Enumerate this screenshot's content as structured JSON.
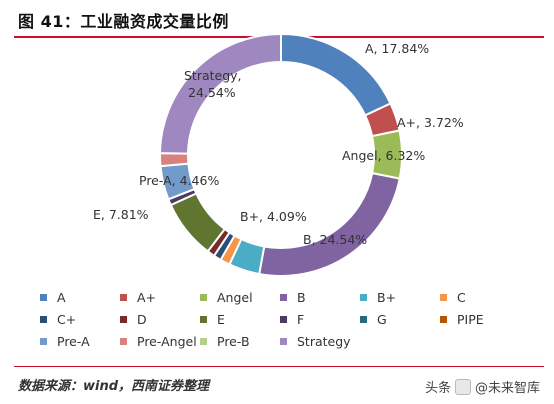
{
  "figure": {
    "title": "图 41：工业融资成交量比例",
    "source": "数据来源：wind，西南证券整理",
    "watermark_left": "头条",
    "watermark_right": "@未来智库"
  },
  "chart_data": {
    "type": "pie",
    "title": "图 41：工业融资成交量比例",
    "donut": true,
    "legend_position": "bottom",
    "slices": [
      {
        "name": "A",
        "value": 17.84,
        "label": "A, 17.84%",
        "color": "#4f81bd"
      },
      {
        "name": "A+",
        "value": 3.72,
        "label": "A+, 3.72%",
        "color": "#c0504d"
      },
      {
        "name": "Angel",
        "value": 6.32,
        "label": "Angel, 6.32%",
        "color": "#9bbb59"
      },
      {
        "name": "B",
        "value": 24.54,
        "label": "B, 24.54%",
        "color": "#8064a2"
      },
      {
        "name": "B+",
        "value": 4.09,
        "label": "B+, 4.09%",
        "color": "#4bacc6"
      },
      {
        "name": "C",
        "value": 1.3,
        "label": "",
        "color": "#f79646"
      },
      {
        "name": "C+",
        "value": 1.0,
        "label": "",
        "color": "#2c4d75"
      },
      {
        "name": "D",
        "value": 1.0,
        "label": "",
        "color": "#772c2a"
      },
      {
        "name": "E",
        "value": 7.81,
        "label": "E, 7.81%",
        "color": "#5f7530"
      },
      {
        "name": "F",
        "value": 0.8,
        "label": "",
        "color": "#4d3b62"
      },
      {
        "name": "G",
        "value": 0.0,
        "label": "",
        "color": "#276a7c"
      },
      {
        "name": "PIPE",
        "value": 0.0,
        "label": "",
        "color": "#b65708"
      },
      {
        "name": "Pre-A",
        "value": 4.46,
        "label": "Pre-A, 4.46%",
        "color": "#729aca"
      },
      {
        "name": "Pre-Angel",
        "value": 1.7,
        "label": "",
        "color": "#d9817f"
      },
      {
        "name": "Pre-B",
        "value": 0.0,
        "label": "",
        "color": "#b3cf8b"
      },
      {
        "name": "Strategy",
        "value": 24.54,
        "label": "Strategy, 24.54%",
        "color": "#9f88bf"
      }
    ]
  }
}
